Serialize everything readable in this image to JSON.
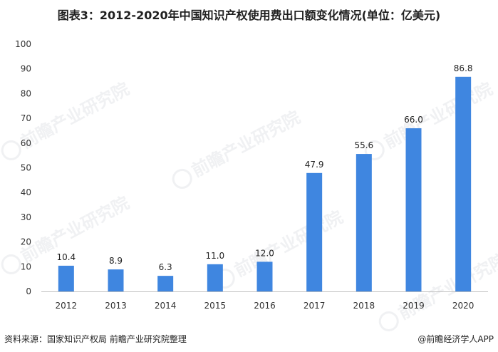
{
  "title": "图表3：2012-2020年中国知识产权使用费出口额变化情况(单位：亿美元)",
  "footer": {
    "source": "资料来源：国家知识产权局 前瞻产业研究院整理",
    "brand": "@前瞻经济学人APP"
  },
  "watermark": {
    "text": "前瞻产业研究院"
  },
  "colors": {
    "bar": "#3f86e0",
    "axis": "#bfbfbf"
  },
  "chart_data": {
    "type": "bar",
    "title": "图表3：2012-2020年中国知识产权使用费出口额变化情况(单位：亿美元)",
    "categories": [
      "2012",
      "2013",
      "2014",
      "2015",
      "2016",
      "2017",
      "2018",
      "2019",
      "2020"
    ],
    "values": [
      10.4,
      8.9,
      6.3,
      11.0,
      12.0,
      47.9,
      55.6,
      66.0,
      86.8
    ],
    "value_labels": [
      "10.4",
      "8.9",
      "6.3",
      "11.0",
      "12.0",
      "47.9",
      "55.6",
      "66.0",
      "86.8"
    ],
    "yticks": [
      "0",
      "10",
      "20",
      "30",
      "40",
      "50",
      "60",
      "70",
      "80",
      "90",
      "100"
    ],
    "ylim": [
      0,
      100
    ],
    "xlabel": "",
    "ylabel": "",
    "grid": false,
    "legend": "none"
  }
}
